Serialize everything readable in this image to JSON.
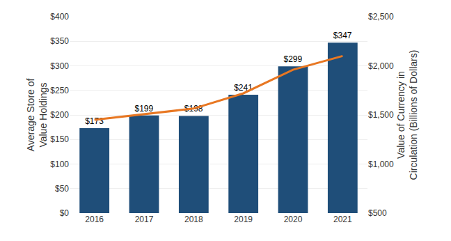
{
  "chart_data": {
    "type": "bar",
    "categories": [
      "2016",
      "2017",
      "2018",
      "2019",
      "2020",
      "2021"
    ],
    "series": [
      {
        "type": "bar",
        "color": "#1F4E79",
        "values": [
          173,
          199,
          198,
          241,
          299,
          347
        ],
        "value_labels": [
          "$173",
          "$199",
          "$198",
          "$241",
          "$299",
          "$347"
        ]
      },
      {
        "type": "line",
        "axis": "y2",
        "color": "#E87722",
        "values": [
          1450,
          1510,
          1565,
          1720,
          1960,
          2100
        ]
      }
    ],
    "data_labels": true,
    "ylabel": "Average Store of\nValue Holdings",
    "y2label": "Value of Currency in\nCirculation (Billions of Dollars)",
    "ylim": [
      0,
      400
    ],
    "yticks": [
      {
        "value": 0,
        "label": "$0"
      },
      {
        "value": 50,
        "label": "$50"
      },
      {
        "value": 100,
        "label": "$100"
      },
      {
        "value": 150,
        "label": "$150"
      },
      {
        "value": 200,
        "label": "$200"
      },
      {
        "value": 250,
        "label": "$250"
      },
      {
        "value": 300,
        "label": "$300"
      },
      {
        "value": 350,
        "label": "$350"
      },
      {
        "value": 400,
        "label": "$400"
      }
    ],
    "y2lim": [
      500,
      2500
    ],
    "y2ticks": [
      {
        "value": 500,
        "label": "$500"
      },
      {
        "value": 1000,
        "label": "$1,000"
      },
      {
        "value": 1500,
        "label": "$1,500"
      },
      {
        "value": 2000,
        "label": "$2,000"
      },
      {
        "value": 2500,
        "label": "$2,500"
      }
    ],
    "grid": true
  }
}
